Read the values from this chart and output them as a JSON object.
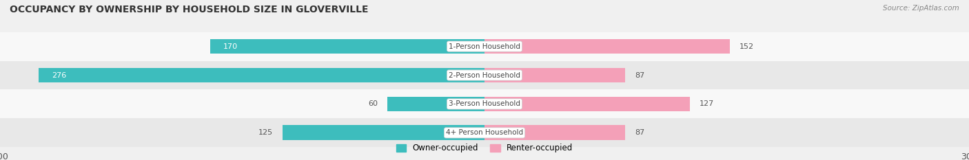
{
  "title": "OCCUPANCY BY OWNERSHIP BY HOUSEHOLD SIZE IN GLOVERVILLE",
  "source": "Source: ZipAtlas.com",
  "categories": [
    "1-Person Household",
    "2-Person Household",
    "3-Person Household",
    "4+ Person Household"
  ],
  "owner_values": [
    170,
    276,
    60,
    125
  ],
  "renter_values": [
    152,
    87,
    127,
    87
  ],
  "owner_color": "#3DBDBD",
  "renter_color": "#F4A0B8",
  "label_color_dark": "#555555",
  "label_color_white": "#ffffff",
  "axis_max": 300,
  "background_color": "#f0f0f0",
  "row_bg_even": "#f8f8f8",
  "row_bg_odd": "#e8e8e8",
  "title_fontsize": 10,
  "bar_height": 0.52,
  "figsize": [
    14.06,
    2.33
  ],
  "dpi": 100
}
